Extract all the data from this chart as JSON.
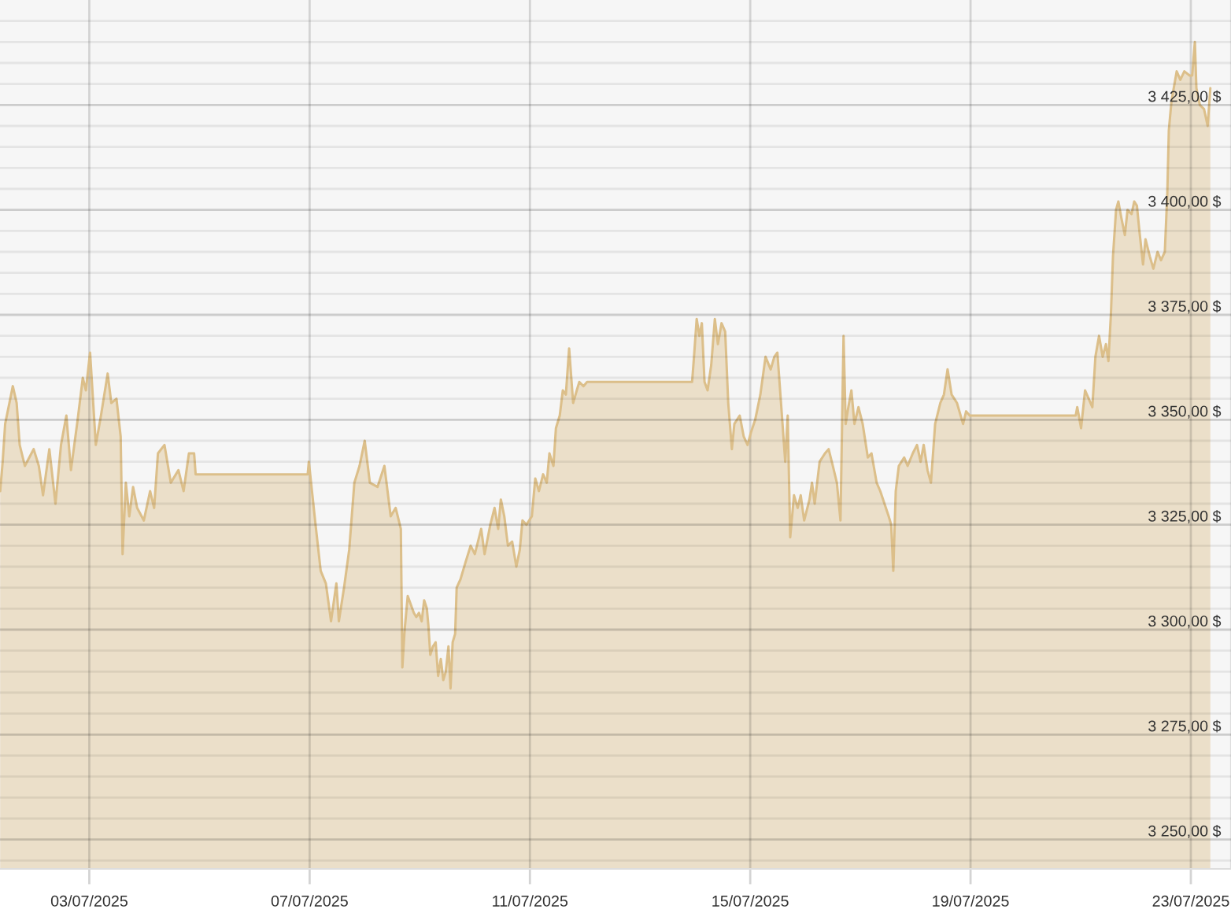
{
  "chart_data": {
    "type": "area",
    "x": [
      "2025-07-01T09:10",
      "2025-07-01T10:15",
      "2025-07-01T11:20",
      "2025-07-01T14:40",
      "2025-07-01T16:20",
      "2025-07-01T17:40",
      "2025-07-01T19:55",
      "2025-07-01T23:45",
      "2025-07-02T02:00",
      "2025-07-02T03:50",
      "2025-07-02T06:35",
      "2025-07-02T09:15",
      "2025-07-02T11:40",
      "2025-07-02T14:00",
      "2025-07-02T16:00",
      "2025-07-02T18:55",
      "2025-07-02T21:10",
      "2025-07-02T22:30",
      "2025-07-03T00:20",
      "2025-07-03T02:50",
      "2025-07-03T05:05",
      "2025-07-03T08:00",
      "2025-07-03T09:35",
      "2025-07-03T11:50",
      "2025-07-03T13:40",
      "2025-07-03T14:30",
      "2025-07-03T15:55",
      "2025-07-03T17:25",
      "2025-07-03T19:05",
      "2025-07-03T20:50",
      "2025-07-03T23:45",
      "2025-07-04T02:30",
      "2025-07-04T04:15",
      "2025-07-04T05:55",
      "2025-07-04T08:45",
      "2025-07-04T11:30",
      "2025-07-04T14:50",
      "2025-07-04T17:05",
      "2025-07-04T19:25",
      "2025-07-04T21:40",
      "2025-07-04T22:20",
      "2025-07-06T23:10",
      "2025-07-06T23:40",
      "2025-07-07T02:35",
      "2025-07-07T04:50",
      "2025-07-07T07:05",
      "2025-07-07T09:20",
      "2025-07-07T11:40",
      "2025-07-07T12:45",
      "2025-07-07T15:00",
      "2025-07-07T17:15",
      "2025-07-07T19:30",
      "2025-07-07T21:45",
      "2025-07-08T00:00",
      "2025-07-08T02:15",
      "2025-07-08T05:35",
      "2025-07-08T08:35",
      "2025-07-08T11:20",
      "2025-07-08T13:30",
      "2025-07-08T15:45",
      "2025-07-08T16:25",
      "2025-07-08T17:25",
      "2025-07-08T18:45",
      "2025-07-08T21:25",
      "2025-07-08T22:30",
      "2025-07-08T23:40",
      "2025-07-09T00:50",
      "2025-07-09T01:55",
      "2025-07-09T03:05",
      "2025-07-09T03:45",
      "2025-07-09T04:35",
      "2025-07-09T05:45",
      "2025-07-09T06:55",
      "2025-07-09T08:00",
      "2025-07-09T09:10",
      "2025-07-09T10:15",
      "2025-07-09T11:20",
      "2025-07-09T12:30",
      "2025-07-09T13:25",
      "2025-07-09T14:20",
      "2025-07-09T15:25",
      "2025-07-09T16:05",
      "2025-07-09T17:45",
      "2025-07-09T19:55",
      "2025-07-09T22:10",
      "2025-07-10T00:00",
      "2025-07-10T02:45",
      "2025-07-10T04:15",
      "2025-07-10T06:45",
      "2025-07-10T08:35",
      "2025-07-10T10:10",
      "2025-07-10T11:20",
      "2025-07-10T12:50",
      "2025-07-10T14:25",
      "2025-07-10T16:15",
      "2025-07-10T18:05",
      "2025-07-10T19:35",
      "2025-07-10T20:45",
      "2025-07-10T22:30",
      "2025-07-11T00:50",
      "2025-07-11T02:20",
      "2025-07-11T03:55",
      "2025-07-11T05:45",
      "2025-07-11T07:20",
      "2025-07-11T08:30",
      "2025-07-11T10:15",
      "2025-07-11T11:20",
      "2025-07-11T13:00",
      "2025-07-11T14:20",
      "2025-07-11T15:40",
      "2025-07-11T17:05",
      "2025-07-11T18:50",
      "2025-07-11T20:25",
      "2025-07-11T21:30",
      "2025-07-11T23:20",
      "2025-07-12T00:55",
      "2025-07-13T22:40",
      "2025-07-13T23:30",
      "2025-07-14T00:40",
      "2025-07-14T01:50",
      "2025-07-14T02:55",
      "2025-07-14T04:05",
      "2025-07-14T05:25",
      "2025-07-14T07:00",
      "2025-07-14T08:35",
      "2025-07-14T09:55",
      "2025-07-14T11:30",
      "2025-07-14T13:05",
      "2025-07-14T14:25",
      "2025-07-14T16:00",
      "2025-07-14T17:05",
      "2025-07-14T19:25",
      "2025-07-14T21:10",
      "2025-07-14T22:50",
      "2025-07-15T00:20",
      "2025-07-15T02:10",
      "2025-07-15T04:25",
      "2025-07-15T06:40",
      "2025-07-15T08:55",
      "2025-07-15T10:30",
      "2025-07-15T11:50",
      "2025-07-15T13:25",
      "2025-07-15T15:15",
      "2025-07-15T16:20",
      "2025-07-15T17:25",
      "2025-07-15T19:05",
      "2025-07-15T20:40",
      "2025-07-15T22:00",
      "2025-07-15T23:30",
      "2025-07-16T01:50",
      "2025-07-16T02:55",
      "2025-07-16T04:05",
      "2025-07-16T06:15",
      "2025-07-16T08:35",
      "2025-07-16T10:10",
      "2025-07-16T12:00",
      "2025-07-16T13:45",
      "2025-07-16T15:20",
      "2025-07-16T16:40",
      "2025-07-16T17:35",
      "2025-07-16T18:45",
      "2025-07-16T20:05",
      "2025-07-16T21:25",
      "2025-07-16T23:10",
      "2025-07-17T01:00",
      "2025-07-17T03:15",
      "2025-07-17T04:50",
      "2025-07-17T07:05",
      "2025-07-17T08:40",
      "2025-07-17T10:30",
      "2025-07-17T12:20",
      "2025-07-17T13:25",
      "2025-07-17T14:20",
      "2025-07-17T15:25",
      "2025-07-17T16:45",
      "2025-07-17T19:05",
      "2025-07-17T20:35",
      "2025-07-17T22:50",
      "2025-07-18T00:40",
      "2025-07-18T02:15",
      "2025-07-18T03:35",
      "2025-07-18T05:15",
      "2025-07-18T06:45",
      "2025-07-18T08:35",
      "2025-07-18T10:50",
      "2025-07-18T12:25",
      "2025-07-18T14:00",
      "2025-07-18T15:45",
      "2025-07-18T18:05",
      "2025-07-18T20:45",
      "2025-07-18T22:05",
      "2025-07-18T23:40",
      "2025-07-20T21:50",
      "2025-07-20T22:30",
      "2025-07-21T00:10",
      "2025-07-21T01:55",
      "2025-07-21T03:30",
      "2025-07-21T05:05",
      "2025-07-21T06:25",
      "2025-07-21T08:00",
      "2025-07-21T09:35",
      "2025-07-21T11:00",
      "2025-07-21T12:05",
      "2025-07-21T13:10",
      "2025-07-21T14:05",
      "2025-07-21T15:25",
      "2025-07-21T16:25",
      "2025-07-21T17:45",
      "2025-07-21T19:15",
      "2025-07-21T20:25",
      "2025-07-21T22:10",
      "2025-07-21T23:20",
      "2025-07-22T00:30",
      "2025-07-22T01:35",
      "2025-07-22T03:10",
      "2025-07-22T04:15",
      "2025-07-22T06:05",
      "2025-07-22T07:40",
      "2025-07-22T09:30",
      "2025-07-22T11:00",
      "2025-07-22T12:40",
      "2025-07-22T13:45",
      "2025-07-22T14:25",
      "2025-07-22T15:35",
      "2025-07-22T17:50",
      "2025-07-22T19:25",
      "2025-07-22T21:10",
      "2025-07-22T23:30",
      "2025-07-23T00:35",
      "2025-07-23T01:45",
      "2025-07-23T02:25",
      "2025-07-23T03:55",
      "2025-07-23T05:45",
      "2025-07-23T07:20",
      "2025-07-23T08:30"
    ],
    "values": [
      3333,
      3340,
      3349,
      3358,
      3354,
      3344,
      3339,
      3343,
      3339,
      3332,
      3343,
      3330,
      3344,
      3351,
      3338,
      3350,
      3360,
      3357,
      3366,
      3344,
      3351,
      3361,
      3354,
      3355,
      3346,
      3318,
      3335,
      3327,
      3334,
      3329,
      3326,
      3333,
      3329,
      3342,
      3344,
      3335,
      3338,
      3333,
      3342,
      3342,
      3337,
      3337,
      3340,
      3325,
      3314,
      3311,
      3302,
      3311,
      3302,
      3310,
      3319,
      3335,
      3339,
      3345,
      3335,
      3334,
      3339,
      3327,
      3329,
      3324,
      3291,
      3300,
      3308,
      3304,
      3303,
      3304,
      3302,
      3307,
      3305,
      3301,
      3294,
      3296,
      3297,
      3289,
      3293,
      3288,
      3290,
      3296,
      3286,
      3297,
      3299,
      3310,
      3312,
      3316,
      3320,
      3318,
      3324,
      3318,
      3325,
      3329,
      3324,
      3331,
      3327,
      3320,
      3321,
      3315,
      3319,
      3326,
      3325,
      3327,
      3336,
      3333,
      3337,
      3335,
      3342,
      3339,
      3348,
      3351,
      3357,
      3356,
      3367,
      3354,
      3357,
      3359,
      3358,
      3359,
      3359,
      3365,
      3374,
      3370,
      3373,
      3359,
      3357,
      3363,
      3374,
      3368,
      3373,
      3371,
      3354,
      3343,
      3349,
      3351,
      3346,
      3344,
      3347,
      3350,
      3356,
      3365,
      3362,
      3365,
      3366,
      3354,
      3340,
      3351,
      3322,
      3332,
      3329,
      3332,
      3326,
      3331,
      3335,
      3330,
      3340,
      3342,
      3343,
      3339,
      3335,
      3326,
      3370,
      3349,
      3353,
      3357,
      3349,
      3353,
      3349,
      3341,
      3342,
      3335,
      3333,
      3330,
      3327,
      3325,
      3314,
      3333,
      3339,
      3341,
      3339,
      3342,
      3344,
      3340,
      3344,
      3338,
      3335,
      3349,
      3354,
      3356,
      3362,
      3356,
      3354,
      3349,
      3352,
      3351,
      3351,
      3353,
      3348,
      3357,
      3355,
      3353,
      3365,
      3370,
      3365,
      3368,
      3364,
      3375,
      3389,
      3400,
      3402,
      3398,
      3394,
      3400,
      3399,
      3402,
      3401,
      3395,
      3387,
      3393,
      3389,
      3386,
      3390,
      3388,
      3390,
      3404,
      3419,
      3426,
      3433,
      3431,
      3433,
      3432,
      3432,
      3440,
      3429,
      3425,
      3424,
      3420,
      3429
    ],
    "color": "#dcbf8a",
    "xlim": [
      "2025-07-01T09:05",
      "2025-07-23T17:30"
    ],
    "ylim": [
      3243,
      3450
    ],
    "xticks": [
      {
        "value": "2025-07-03",
        "label": "03/07/2025"
      },
      {
        "value": "2025-07-07",
        "label": "07/07/2025"
      },
      {
        "value": "2025-07-11",
        "label": "11/07/2025"
      },
      {
        "value": "2025-07-15",
        "label": "15/07/2025"
      },
      {
        "value": "2025-07-19",
        "label": "19/07/2025"
      },
      {
        "value": "2025-07-23",
        "label": "23/07/2025"
      }
    ],
    "yticks": [
      {
        "value": 3245,
        "label": null
      },
      {
        "value": 3250,
        "label": "3 250,00 $"
      },
      {
        "value": 3255,
        "label": null
      },
      {
        "value": 3260,
        "label": null
      },
      {
        "value": 3265,
        "label": null
      },
      {
        "value": 3270,
        "label": null
      },
      {
        "value": 3275,
        "label": "3 275,00 $"
      },
      {
        "value": 3280,
        "label": null
      },
      {
        "value": 3285,
        "label": null
      },
      {
        "value": 3290,
        "label": null
      },
      {
        "value": 3295,
        "label": null
      },
      {
        "value": 3300,
        "label": "3 300,00 $"
      },
      {
        "value": 3305,
        "label": null
      },
      {
        "value": 3310,
        "label": null
      },
      {
        "value": 3315,
        "label": null
      },
      {
        "value": 3320,
        "label": null
      },
      {
        "value": 3325,
        "label": "3 325,00 $"
      },
      {
        "value": 3330,
        "label": null
      },
      {
        "value": 3335,
        "label": null
      },
      {
        "value": 3340,
        "label": null
      },
      {
        "value": 3345,
        "label": null
      },
      {
        "value": 3350,
        "label": "3 350,00 $"
      },
      {
        "value": 3355,
        "label": null
      },
      {
        "value": 3360,
        "label": null
      },
      {
        "value": 3365,
        "label": null
      },
      {
        "value": 3370,
        "label": null
      },
      {
        "value": 3375,
        "label": "3 375,00 $"
      },
      {
        "value": 3380,
        "label": null
      },
      {
        "value": 3385,
        "label": null
      },
      {
        "value": 3390,
        "label": null
      },
      {
        "value": 3395,
        "label": null
      },
      {
        "value": 3400,
        "label": "3 400,00 $"
      },
      {
        "value": 3405,
        "label": null
      },
      {
        "value": 3410,
        "label": null
      },
      {
        "value": 3415,
        "label": null
      },
      {
        "value": 3420,
        "label": null
      },
      {
        "value": 3425,
        "label": "3 425,00 $"
      },
      {
        "value": 3430,
        "label": null
      },
      {
        "value": 3435,
        "label": null
      },
      {
        "value": 3440,
        "label": null
      },
      {
        "value": 3445,
        "label": null
      }
    ],
    "grid": true
  }
}
